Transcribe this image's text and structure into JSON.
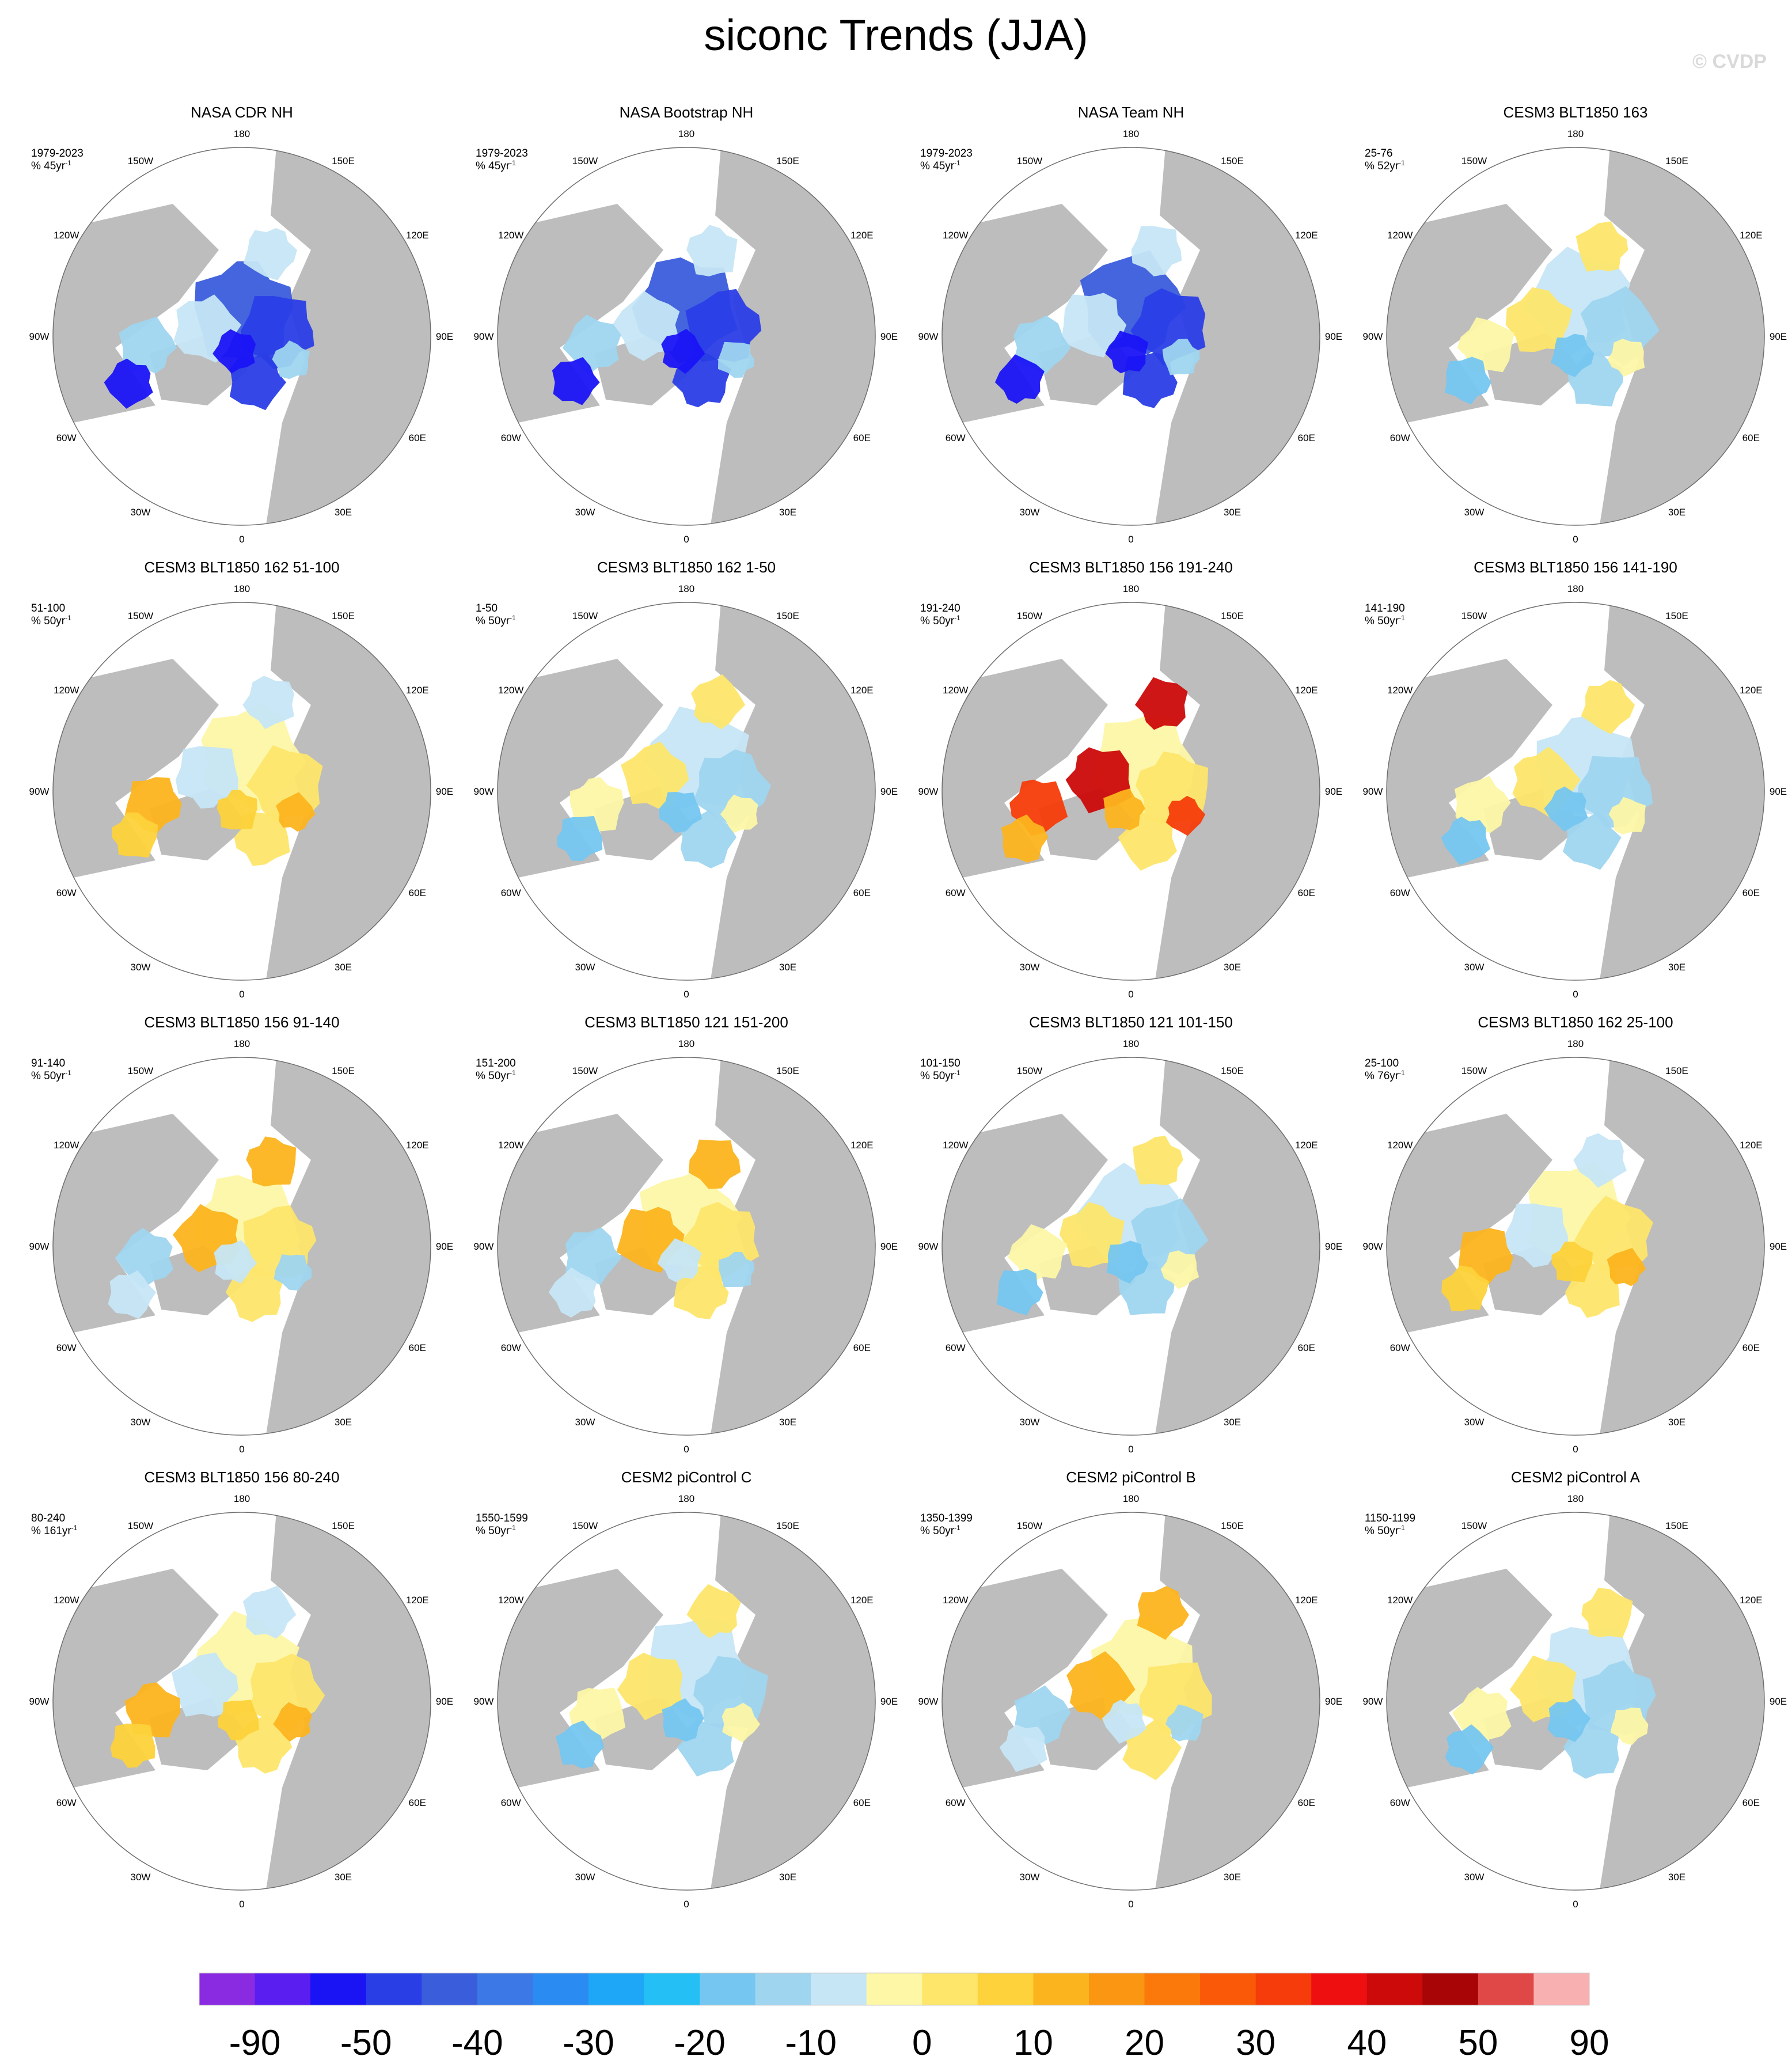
{
  "title": "siconc Trends (JJA)",
  "watermark": "© CVDP",
  "lon_labels": [
    "180",
    "150E",
    "120E",
    "90E",
    "60E",
    "30E",
    "0",
    "30W",
    "60W",
    "90W",
    "120W",
    "150W"
  ],
  "panels": [
    {
      "title": "NASA CDR NH",
      "period": "1979-2023",
      "unit": "% 45yr",
      "pattern": "neg"
    },
    {
      "title": "NASA Bootstrap NH",
      "period": "1979-2023",
      "unit": "% 45yr",
      "pattern": "neg"
    },
    {
      "title": "NASA Team NH",
      "period": "1979-2023",
      "unit": "% 45yr",
      "pattern": "neg"
    },
    {
      "title": "CESM3 BLT1850 163",
      "period": "25-76",
      "unit": "% 52yr",
      "pattern": "mixed_blue"
    },
    {
      "title": "CESM3 BLT1850 162 51-100",
      "period": "51-100",
      "unit": "% 50yr",
      "pattern": "pos"
    },
    {
      "title": "CESM3 BLT1850 162 1-50",
      "period": "1-50",
      "unit": "% 50yr",
      "pattern": "mixed_blue"
    },
    {
      "title": "CESM3 BLT1850 156 191-240",
      "period": "191-240",
      "unit": "% 50yr",
      "pattern": "strong_pos"
    },
    {
      "title": "CESM3 BLT1850 156 141-190",
      "period": "141-190",
      "unit": "% 50yr",
      "pattern": "mixed_blue"
    },
    {
      "title": "CESM3 BLT1850 156 91-140",
      "period": "91-140",
      "unit": "% 50yr",
      "pattern": "mixed"
    },
    {
      "title": "CESM3 BLT1850 121 151-200",
      "period": "151-200",
      "unit": "% 50yr",
      "pattern": "mixed"
    },
    {
      "title": "CESM3 BLT1850 121 101-150",
      "period": "101-150",
      "unit": "% 50yr",
      "pattern": "mixed_blue"
    },
    {
      "title": "CESM3 BLT1850 162 25-100",
      "period": "25-100",
      "unit": "% 76yr",
      "pattern": "pos"
    },
    {
      "title": "CESM3 BLT1850 156 80-240",
      "period": "80-240",
      "unit": "% 161yr",
      "pattern": "pos"
    },
    {
      "title": "CESM2 piControl C",
      "period": "1550-1599",
      "unit": "% 50yr",
      "pattern": "mixed_blue"
    },
    {
      "title": "CESM2 piControl B",
      "period": "1350-1399",
      "unit": "% 50yr",
      "pattern": "mixed"
    },
    {
      "title": "CESM2 piControl A",
      "period": "1150-1199",
      "unit": "% 50yr",
      "pattern": "mixed_blue"
    }
  ],
  "colorbar": {
    "colors": [
      "#8a2be2",
      "#5a1ef0",
      "#1a14f5",
      "#2a3ee6",
      "#3a5ddc",
      "#3c78e6",
      "#2a8cf2",
      "#1ea6f7",
      "#23bff5",
      "#75c6f0",
      "#9fd5ef",
      "#c6e6f6",
      "#fdf7a6",
      "#fde66a",
      "#fdd23a",
      "#fcb41e",
      "#fb9612",
      "#fb780a",
      "#fa5a08",
      "#f63c0a",
      "#ee1010",
      "#cc0a0a",
      "#a80606",
      "#e04848",
      "#f8b0b0"
    ],
    "labels": [
      "-90",
      "-50",
      "-40",
      "-30",
      "-20",
      "-10",
      "0",
      "10",
      "20",
      "30",
      "40",
      "50",
      "90"
    ]
  },
  "land_color": "#bdbdbd"
}
